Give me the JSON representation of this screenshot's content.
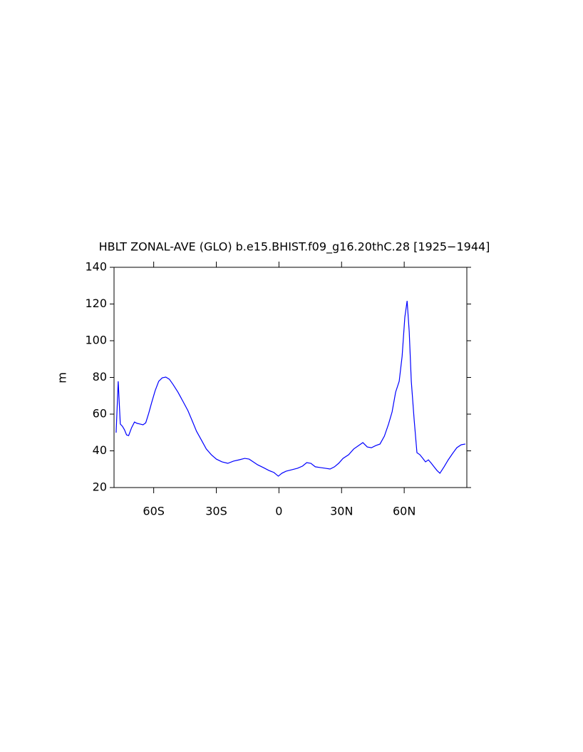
{
  "chart_data": {
    "type": "line",
    "title": "HBLT ZONAL-AVE (GLO) b.e15.BHIST.f09_g16.20thC.28 [1925−1944]",
    "y_label": "m",
    "x": [
      -78,
      -77,
      -76,
      -75,
      -74,
      -73,
      -72,
      -70.6,
      -69.2,
      -68,
      -66.5,
      -65.1,
      -63.8,
      -62.4,
      -61,
      -59.3,
      -57.6,
      -55.9,
      -54.2,
      -52.5,
      -50.8,
      -48.4,
      -46,
      -43.6,
      -41.6,
      -39.5,
      -37.2,
      -34.8,
      -32.4,
      -30,
      -27.3,
      -24.5,
      -21.8,
      -19.1,
      -16.4,
      -14.3,
      -12.3,
      -10.2,
      -7.5,
      -4.8,
      -2.4,
      -0.3,
      1.4,
      3.4,
      6.1,
      8.9,
      11.3,
      13.3,
      15.3,
      17.4,
      19.8,
      22.2,
      24.5,
      26.6,
      28.6,
      30.7,
      33.4,
      35.8,
      38.2,
      40.2,
      42.3,
      44.3,
      46.4,
      48.4,
      50.5,
      52.5,
      54.2,
      55.9,
      57.6,
      59,
      60.3,
      61.4,
      62.4,
      63.4,
      64.8,
      66.1,
      67.5,
      68.9,
      70.2,
      71.6,
      73,
      74.3,
      75.7,
      77.1,
      79.1,
      81.1,
      83.2,
      85.2,
      87.3,
      89.3
    ],
    "series": [
      {
        "name": "HBLT",
        "color": "#0000ff",
        "values": [
          49.9,
          77.9,
          54.6,
          53.4,
          51.5,
          48.7,
          48.3,
          52.6,
          55.7,
          55,
          54.6,
          54.2,
          55.3,
          60.4,
          66.2,
          72.8,
          77.9,
          79.8,
          80.2,
          79,
          76.3,
          72,
          67,
          61.9,
          56.5,
          50.7,
          46,
          41,
          37.9,
          35.5,
          34,
          33.2,
          34.4,
          35.1,
          35.9,
          35.5,
          34,
          32.4,
          30.9,
          29.3,
          28.2,
          26.2,
          27.8,
          28.9,
          29.7,
          30.5,
          31.7,
          33.6,
          33.2,
          31.3,
          30.9,
          30.5,
          30.1,
          31.3,
          33.2,
          35.9,
          37.9,
          41,
          42.9,
          44.5,
          42.1,
          41.7,
          42.9,
          43.7,
          48,
          54.6,
          61.2,
          72,
          77.9,
          91.5,
          112.8,
          121.7,
          105,
          77.9,
          56.5,
          39,
          37.9,
          35.9,
          34,
          35.1,
          33.2,
          31.3,
          29.3,
          27.8,
          31.3,
          35.1,
          38.6,
          41.7,
          43.3,
          43.7
        ]
      }
    ],
    "xlim": [
      -79,
      90
    ],
    "xticks": [
      {
        "value": -60,
        "label": "60S"
      },
      {
        "value": -30,
        "label": "30S"
      },
      0,
      {
        "value": 30,
        "label": "30N"
      },
      {
        "value": 60,
        "label": "60N"
      }
    ],
    "ylim": [
      20,
      140
    ],
    "yticks": [
      20,
      40,
      60,
      80,
      100,
      120,
      140
    ]
  }
}
